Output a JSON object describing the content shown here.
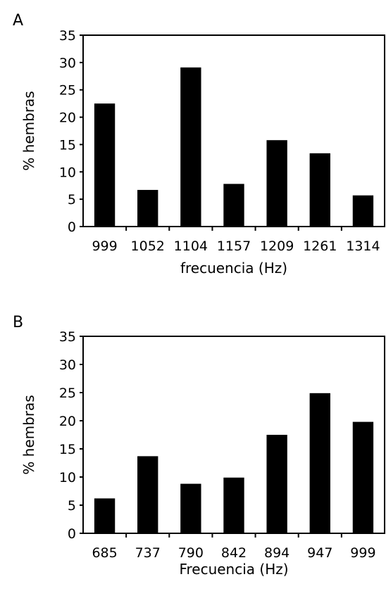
{
  "chart_data": [
    {
      "panel": "A",
      "type": "bar",
      "categories": [
        "999",
        "1052",
        "1104",
        "1157",
        "1209",
        "1261",
        "1314"
      ],
      "values": [
        22.5,
        6.7,
        29.1,
        7.8,
        15.8,
        13.4,
        5.7
      ],
      "xlabel": "frecuencia (Hz)",
      "ylabel": "% hembras",
      "ylim": [
        0,
        35
      ],
      "yticks": [
        0,
        5,
        10,
        15,
        20,
        25,
        30,
        35
      ],
      "grid": false,
      "bar_color": "#000000"
    },
    {
      "panel": "B",
      "type": "bar",
      "categories": [
        "685",
        "737",
        "790",
        "842",
        "894",
        "947",
        "999"
      ],
      "values": [
        6.2,
        13.7,
        8.8,
        9.9,
        17.5,
        24.9,
        19.8
      ],
      "xlabel": "Frecuencia (Hz)",
      "ylabel": "% hembras",
      "ylim": [
        0,
        35
      ],
      "yticks": [
        0,
        5,
        10,
        15,
        20,
        25,
        30,
        35
      ],
      "grid": false,
      "bar_color": "#000000"
    }
  ]
}
